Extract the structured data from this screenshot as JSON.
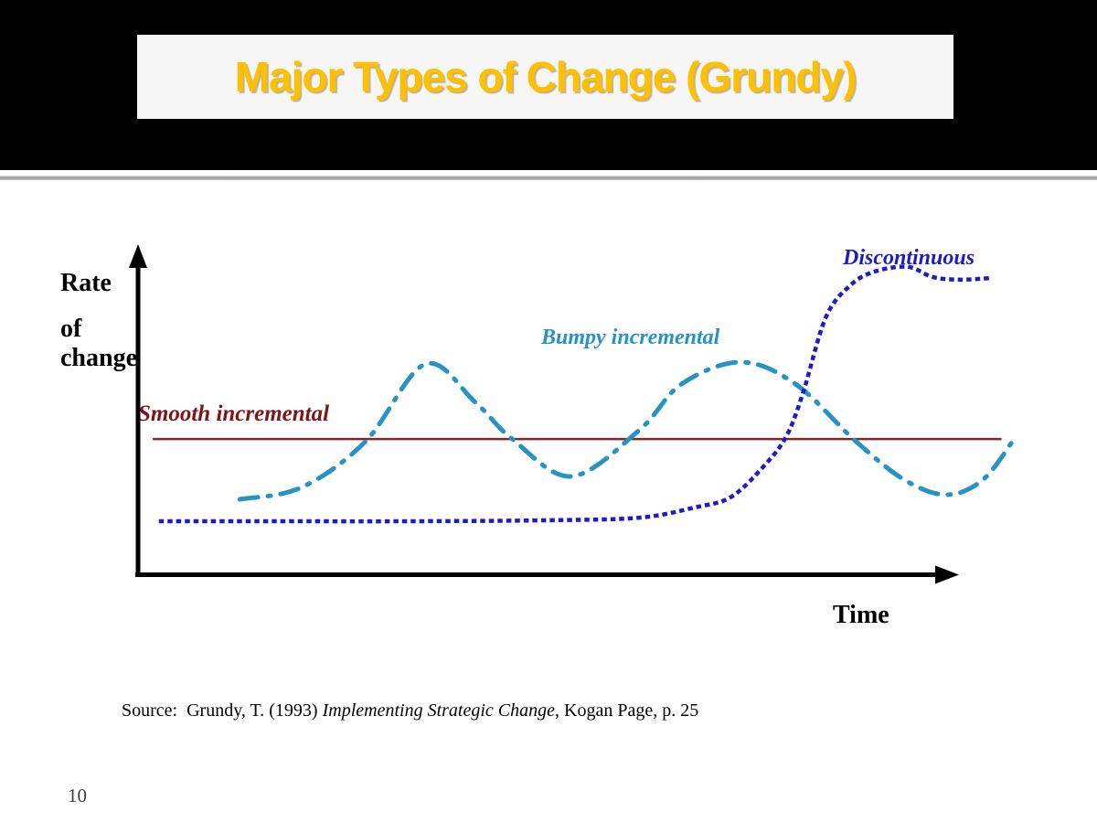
{
  "slide": {
    "title": "Major Types of Change (Grundy)",
    "page_number": "10",
    "source": {
      "prefix": "Source:  Grundy, T. (1993) ",
      "italic_title": "Implementing Strategic Change",
      "suffix": ", Kogan Page, p. 25"
    }
  },
  "chart": {
    "y_axis_label_lines": {
      "line1": "Rate",
      "line2": "of",
      "line3": "change"
    },
    "x_axis_label": "Time",
    "labels": {
      "smooth": "Smooth incremental",
      "bumpy": "Bumpy incremental",
      "discontinuous": "Discontinuous"
    },
    "colors": {
      "title_gold": "#FFC000",
      "axis": "#000000",
      "smooth_line": "#8B2222",
      "smooth_label": "#7E1418",
      "bumpy": "#2793C5",
      "discontinuous": "#1C1CC4"
    }
  },
  "chart_data": {
    "type": "line",
    "title": "Major Types of Change (Grundy)",
    "xlabel": "Time",
    "ylabel": "Rate of change",
    "x_range": [
      0,
      100
    ],
    "y_range": [
      0,
      100
    ],
    "grid": false,
    "axes_numeric": false,
    "legend_position": "labels-on-curves",
    "series": [
      {
        "name": "Smooth incremental",
        "style": "solid",
        "color": "#8B2222",
        "points": [
          [
            1.9,
            41.3
          ],
          [
            105.3,
            41.3
          ]
        ]
      },
      {
        "name": "Bumpy incremental",
        "style": "dash-dot",
        "color": "#2793C5",
        "points": [
          [
            12.5,
            22.9
          ],
          [
            20.0,
            26.5
          ],
          [
            27.8,
            40.5
          ],
          [
            35.1,
            64.2
          ],
          [
            41.2,
            52.5
          ],
          [
            45.7,
            41.3
          ],
          [
            52.9,
            29.9
          ],
          [
            61.2,
            44.1
          ],
          [
            66.3,
            58.1
          ],
          [
            73.5,
            64.8
          ],
          [
            80.2,
            58.1
          ],
          [
            87.6,
            40.5
          ],
          [
            93.5,
            28.8
          ],
          [
            98.6,
            24.3
          ],
          [
            103.0,
            28.8
          ],
          [
            106.7,
            40.8
          ]
        ]
      },
      {
        "name": "Discontinuous",
        "style": "dotted",
        "color": "#1C1CC4",
        "points": [
          [
            2.9,
            16.2
          ],
          [
            16.7,
            16.2
          ],
          [
            33.4,
            16.2
          ],
          [
            50.1,
            16.5
          ],
          [
            61.2,
            17.3
          ],
          [
            67.9,
            20.4
          ],
          [
            72.4,
            23.7
          ],
          [
            76.5,
            33.5
          ],
          [
            79.1,
            42.2
          ],
          [
            81.1,
            55.3
          ],
          [
            83.9,
            78.5
          ],
          [
            86.9,
            88.3
          ],
          [
            89.9,
            92.5
          ],
          [
            93.9,
            93.9
          ],
          [
            96.9,
            90.8
          ],
          [
            100.2,
            90.0
          ],
          [
            104.1,
            90.5
          ]
        ]
      }
    ]
  }
}
